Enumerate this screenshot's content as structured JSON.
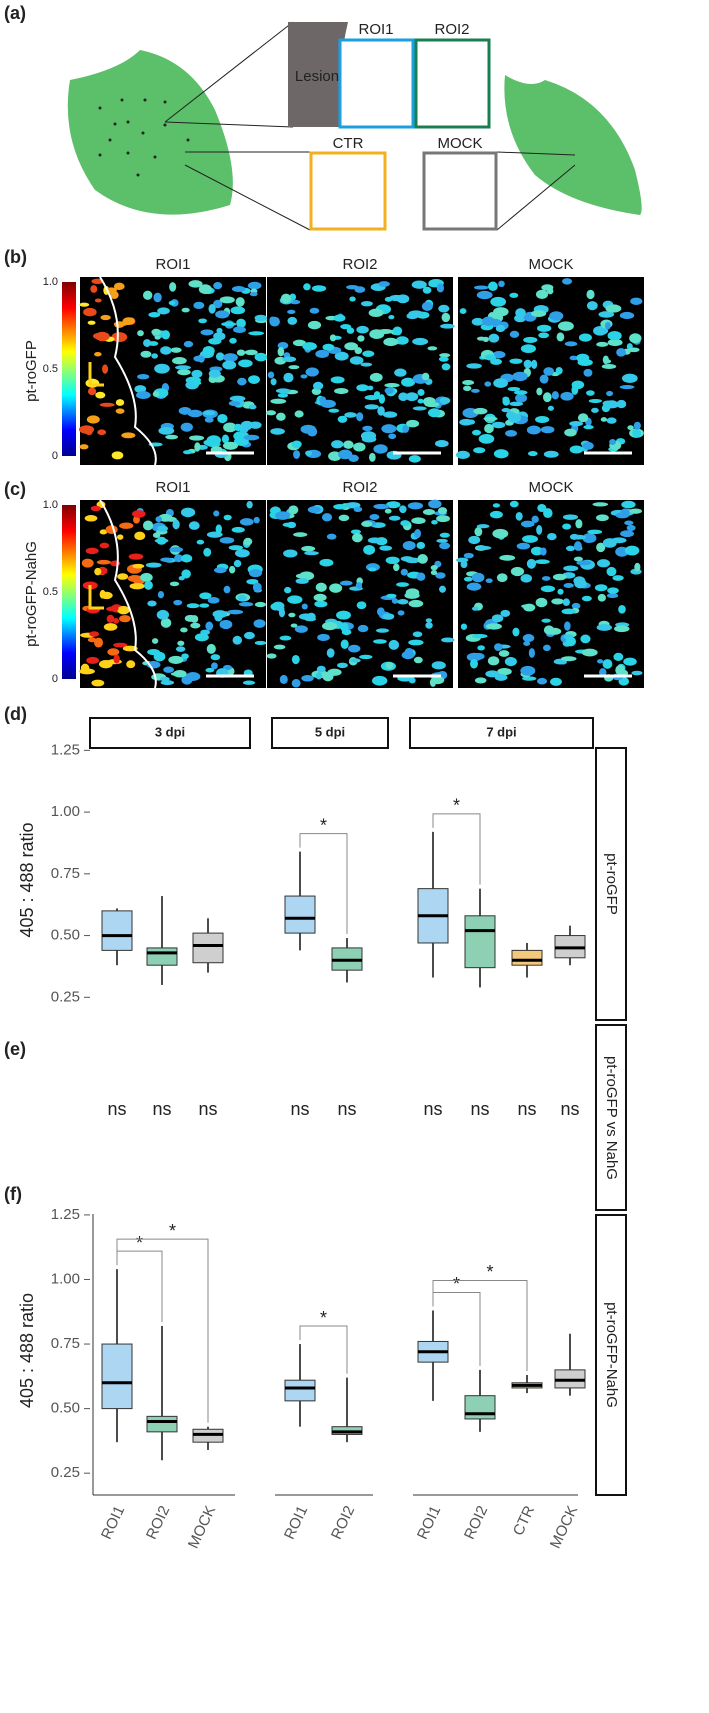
{
  "panel_labels": [
    "(a)",
    "(b)",
    "(c)",
    "(d)",
    "(e)",
    "(f)"
  ],
  "diagram": {
    "lesion": "Lesion",
    "roi1": "ROI1",
    "roi2": "ROI2",
    "ctr": "CTR",
    "mock": "MOCK"
  },
  "images": {
    "columns": [
      "ROI1",
      "ROI2",
      "MOCK"
    ],
    "rows": [
      "pt-roGFP",
      "pt-roGFP-NahG"
    ],
    "colorbar_ticks": [
      0,
      0.5,
      {
        "value": 1,
        "label": "1.0"
      }
    ]
  },
  "ns_row": {
    "strip": "pt-roGFP vs NahG",
    "labels": [
      [
        "ns",
        "ns",
        "ns"
      ],
      [
        "ns",
        "ns"
      ],
      [
        "ns",
        "ns",
        "ns",
        "ns"
      ]
    ]
  },
  "chart_data": [
    {
      "type": "box",
      "ylabel": "405 : 488 ratio",
      "strip": "pt-roGFP",
      "ylim": [
        0.15,
        1.3
      ],
      "yticks": [
        0.25,
        {
          "value": 0.5,
          "label": "0.50"
        },
        0.75,
        {
          "value": 1,
          "label": "1.00"
        },
        1.25
      ],
      "colors": {
        "ROI1": "#acd6f2",
        "ROI2": "#8dd0b4",
        "CTR": "#f3c878",
        "MOCK": "#cfcfcf"
      },
      "facets": [
        {
          "title": "3 dpi",
          "categories": [
            "ROI1",
            "ROI2",
            "MOCK"
          ],
          "boxes": [
            [
              0.38,
              0.44,
              0.5,
              0.6,
              0.61
            ],
            [
              0.3,
              0.38,
              0.43,
              0.45,
              0.66
            ],
            [
              0.35,
              0.39,
              0.46,
              0.51,
              0.57
            ]
          ],
          "comparisons": []
        },
        {
          "title": "5 dpi",
          "categories": [
            "ROI1",
            "ROI2"
          ],
          "boxes": [
            [
              0.44,
              0.51,
              0.57,
              0.66,
              0.84
            ],
            [
              0.31,
              0.36,
              0.4,
              0.45,
              0.49
            ]
          ],
          "comparisons": [
            {
              "groups": [
                "ROI1",
                "ROI2"
              ],
              "label": "*"
            }
          ]
        },
        {
          "title": "7 dpi",
          "categories": [
            "ROI1",
            "ROI2",
            "CTR",
            "MOCK"
          ],
          "boxes": [
            [
              0.33,
              0.47,
              0.58,
              0.69,
              0.92
            ],
            [
              0.29,
              0.37,
              0.52,
              0.58,
              0.69
            ],
            [
              0.33,
              0.38,
              0.4,
              0.44,
              0.47
            ],
            [
              0.38,
              0.41,
              0.45,
              0.5,
              0.54
            ]
          ],
          "comparisons": [
            {
              "groups": [
                "ROI1",
                "ROI2"
              ],
              "label": "*"
            }
          ]
        }
      ]
    },
    {
      "type": "box",
      "ylabel": "405 : 488 ratio",
      "strip": "pt-roGFP-NahG",
      "ylim": [
        0.15,
        1.3
      ],
      "yticks": [
        0.25,
        {
          "value": 0.5,
          "label": "0.50"
        },
        0.75,
        {
          "value": 1,
          "label": "1.00"
        },
        1.25
      ],
      "colors": {
        "ROI1": "#acd6f2",
        "ROI2": "#8dd0b4",
        "CTR": "#f3c878",
        "MOCK": "#cfcfcf"
      },
      "facets": [
        {
          "categories": [
            "ROI1",
            "ROI2",
            "MOCK"
          ],
          "boxes": [
            [
              0.37,
              0.5,
              0.6,
              0.75,
              1.04
            ],
            [
              0.3,
              0.41,
              0.45,
              0.47,
              0.82
            ],
            [
              0.34,
              0.37,
              0.4,
              0.42,
              0.43
            ]
          ],
          "comparisons": [
            {
              "groups": [
                "ROI1",
                "ROI2"
              ],
              "label": "*"
            },
            {
              "groups": [
                "ROI1",
                "MOCK"
              ],
              "label": "*"
            }
          ]
        },
        {
          "categories": [
            "ROI1",
            "ROI2"
          ],
          "boxes": [
            [
              0.43,
              0.53,
              0.58,
              0.61,
              0.75
            ],
            [
              0.37,
              0.4,
              0.41,
              0.43,
              0.62
            ]
          ],
          "comparisons": [
            {
              "groups": [
                "ROI1",
                "ROI2"
              ],
              "label": "*"
            }
          ]
        },
        {
          "categories": [
            "ROI1",
            "ROI2",
            "CTR",
            "MOCK"
          ],
          "boxes": [
            [
              0.53,
              0.68,
              0.72,
              0.76,
              0.88
            ],
            [
              0.41,
              0.46,
              0.48,
              0.55,
              0.65
            ],
            [
              0.56,
              0.58,
              0.59,
              0.6,
              0.63
            ],
            [
              0.55,
              0.58,
              0.61,
              0.65,
              0.79
            ]
          ],
          "comparisons": [
            {
              "groups": [
                "ROI1",
                "ROI2"
              ],
              "label": "*"
            },
            {
              "groups": [
                "ROI1",
                "CTR"
              ],
              "label": "*"
            }
          ]
        }
      ]
    }
  ]
}
